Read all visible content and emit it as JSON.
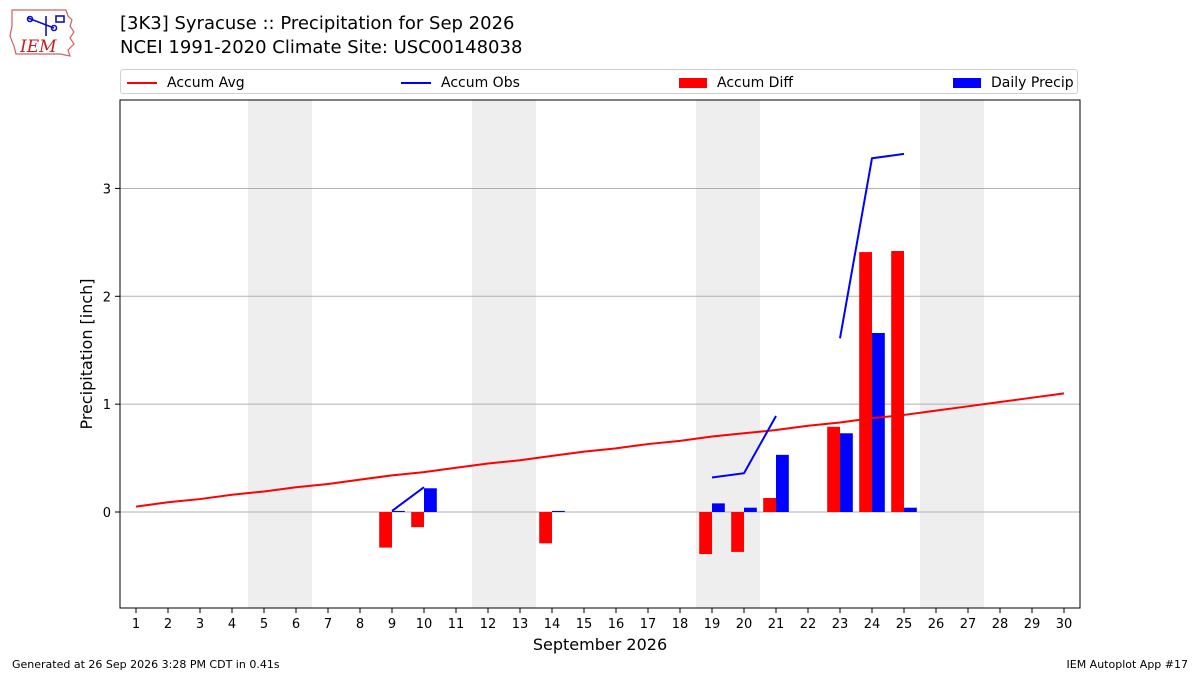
{
  "header": {
    "title_line1": "[3K3] Syracuse :: Precipitation for Sep 2026",
    "title_line2": "NCEI 1991-2020 Climate Site: USC00148038"
  },
  "logo": {
    "text": "IEM",
    "icon": "iem-iowa-weather-logo"
  },
  "footer": {
    "left": "Generated at 26 Sep 2026 3:28 PM CDT in 0.41s",
    "right": "IEM Autoplot App #17"
  },
  "colors": {
    "accum_avg": "#ff0000",
    "accum_obs": "#0000ff",
    "accum_diff": "#ff0000",
    "daily_precip": "#0000ff",
    "weekend": "#eeeeee",
    "grid": "#b0b0b0"
  },
  "chart_data": {
    "type": "bar",
    "xlabel": "September 2026",
    "ylabel": "Precipitation [inch]",
    "x_ticks": [
      "1",
      "2",
      "3",
      "4",
      "5",
      "6",
      "7",
      "8",
      "9",
      "10",
      "11",
      "12",
      "13",
      "14",
      "15",
      "16",
      "17",
      "18",
      "19",
      "20",
      "21",
      "22",
      "23",
      "24",
      "25",
      "26",
      "27",
      "28",
      "29",
      "30"
    ],
    "xlim": [
      0.5,
      30.5
    ],
    "ylim": [
      -0.89,
      3.82
    ],
    "y_ticks": [
      "0",
      "1",
      "2",
      "3"
    ],
    "y_tick_values": [
      0,
      1,
      2,
      3
    ],
    "grid": true,
    "legend_position": "top",
    "weekend_days": [
      5,
      6,
      12,
      13,
      19,
      20,
      26,
      27
    ],
    "legend": [
      "Accum Avg",
      "Accum Obs",
      "Accum Diff",
      "Daily Precip"
    ],
    "series": [
      {
        "name": "Accum Avg",
        "kind": "line",
        "x": [
          1,
          2,
          3,
          4,
          5,
          6,
          7,
          8,
          9,
          10,
          11,
          12,
          13,
          14,
          15,
          16,
          17,
          18,
          19,
          20,
          21,
          22,
          23,
          24,
          25,
          26,
          27,
          28,
          29,
          30
        ],
        "values": [
          0.05,
          0.09,
          0.12,
          0.16,
          0.19,
          0.23,
          0.26,
          0.3,
          0.34,
          0.37,
          0.41,
          0.45,
          0.48,
          0.52,
          0.56,
          0.59,
          0.63,
          0.66,
          0.7,
          0.73,
          0.76,
          0.8,
          0.83,
          0.87,
          0.9,
          0.94,
          0.98,
          1.02,
          1.06,
          1.1
        ]
      },
      {
        "name": "Accum Obs",
        "kind": "line",
        "segments": [
          {
            "x": [
              9,
              10
            ],
            "values": [
              0.01,
              0.23
            ]
          },
          {
            "x": [
              19,
              20,
              21
            ],
            "values": [
              0.32,
              0.36,
              0.89
            ]
          },
          {
            "x": [
              23,
              24,
              25
            ],
            "values": [
              1.61,
              3.28,
              3.32
            ]
          }
        ]
      },
      {
        "name": "Accum Diff",
        "kind": "bar",
        "x": [
          9,
          10,
          14,
          19,
          20,
          21,
          23,
          24,
          25
        ],
        "values": [
          -0.33,
          -0.14,
          -0.29,
          -0.39,
          -0.37,
          0.13,
          0.79,
          2.41,
          2.42
        ]
      },
      {
        "name": "Daily Precip",
        "kind": "bar",
        "x": [
          9,
          10,
          14,
          19,
          20,
          21,
          23,
          24,
          25
        ],
        "values": [
          0.01,
          0.22,
          0.01,
          0.08,
          0.04,
          0.53,
          0.73,
          1.66,
          0.04
        ]
      }
    ]
  }
}
